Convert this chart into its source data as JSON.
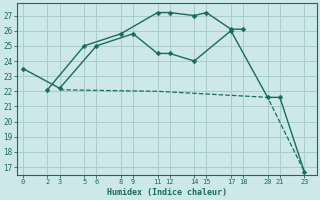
{
  "xlabel": "Humidex (Indice chaleur)",
  "ylabel": "",
  "bg_color": "#cce8e8",
  "grid_color": "#aacccc",
  "line_color": "#1a6b5a",
  "xlim": [
    -0.5,
    24
  ],
  "ylim": [
    16.5,
    27.8
  ],
  "xtick_positions": [
    0,
    2,
    3,
    5,
    6,
    8,
    9,
    11,
    12,
    14,
    15,
    17,
    18,
    20,
    21,
    23
  ],
  "xtick_labels": [
    "0",
    "2",
    "3",
    "5",
    "6",
    "8",
    "9",
    "11",
    "12",
    "14",
    "15",
    "17",
    "18",
    "20",
    "21",
    "23"
  ],
  "ytick_positions": [
    17,
    18,
    19,
    20,
    21,
    22,
    23,
    24,
    25,
    26,
    27
  ],
  "ytick_labels": [
    "17",
    "18",
    "19",
    "20",
    "21",
    "22",
    "23",
    "24",
    "25",
    "26",
    "27"
  ],
  "line1_x": [
    2,
    5,
    8,
    11,
    12,
    14,
    15,
    17,
    18
  ],
  "line1_y": [
    22.1,
    25.0,
    25.8,
    27.2,
    27.2,
    27.0,
    27.2,
    26.1,
    26.1
  ],
  "line2_x": [
    0,
    3,
    6,
    9,
    11,
    12,
    14,
    17,
    20,
    21,
    23
  ],
  "line2_y": [
    23.5,
    22.2,
    25.0,
    25.8,
    24.5,
    24.5,
    24.0,
    26.0,
    21.6,
    21.6,
    16.7
  ],
  "line3_x": [
    3,
    11,
    20,
    23
  ],
  "line3_y": [
    22.1,
    22.0,
    21.6,
    16.7
  ]
}
